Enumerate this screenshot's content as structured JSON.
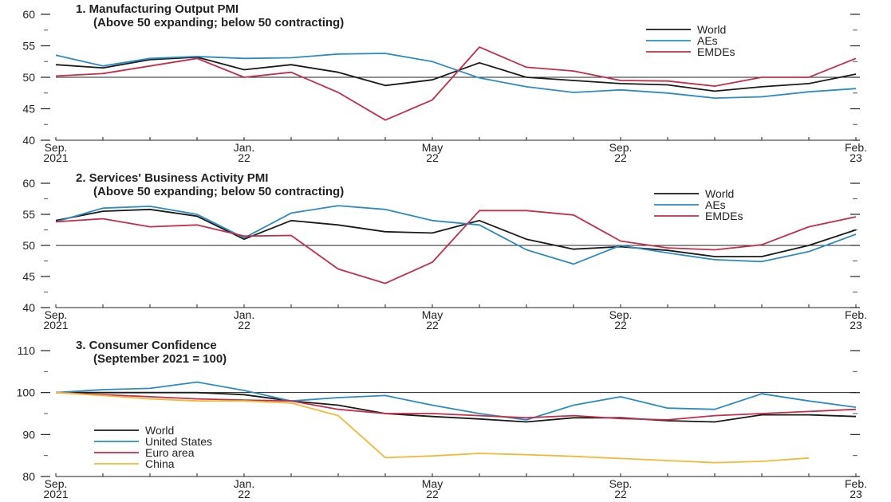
{
  "chart_data": [
    {
      "type": "line",
      "title": "1. Manufacturing Output PMI",
      "subtitle": "(Above 50 expanding; below 50 contracting)",
      "x": [
        "Sep. 2021",
        "Oct. 2021",
        "Nov. 2021",
        "Dec. 2021",
        "Jan. 22",
        "Feb. 22",
        "Mar. 22",
        "Apr. 22",
        "May 22",
        "Jun. 22",
        "Jul. 22",
        "Aug. 22",
        "Sep. 22",
        "Oct. 22",
        "Nov. 22",
        "Dec. 22",
        "Jan. 23",
        "Feb. 23"
      ],
      "x_tick_labels": [
        {
          "index": 0,
          "line1": "Sep.",
          "line2": "2021"
        },
        {
          "index": 4,
          "line1": "Jan.",
          "line2": "22"
        },
        {
          "index": 8,
          "line1": "May",
          "line2": "22"
        },
        {
          "index": 12,
          "line1": "Sep.",
          "line2": "22"
        },
        {
          "index": 17,
          "line1": "Feb.",
          "line2": "23"
        }
      ],
      "ylim": [
        40,
        60
      ],
      "y_ticks": [
        40,
        45,
        50,
        55,
        60
      ],
      "reference_line": 50,
      "legend_position": "top-right",
      "series": [
        {
          "name": "World",
          "color": "#1a1a1a",
          "values": [
            52.0,
            51.5,
            52.8,
            53.2,
            51.2,
            52.0,
            50.8,
            48.7,
            49.6,
            52.3,
            50.0,
            49.5,
            49.0,
            48.8,
            47.8,
            48.5,
            49.0,
            50.5
          ]
        },
        {
          "name": "AEs",
          "color": "#2e8bc0",
          "values": [
            53.5,
            51.8,
            53.0,
            53.3,
            53.0,
            53.1,
            53.7,
            53.8,
            52.5,
            49.9,
            48.5,
            47.6,
            48.0,
            47.5,
            46.7,
            46.9,
            47.7,
            48.2
          ]
        },
        {
          "name": "EMDEs",
          "color": "#c0304a",
          "values": [
            50.2,
            50.6,
            51.8,
            53.0,
            50.0,
            50.8,
            47.6,
            43.2,
            46.4,
            54.8,
            51.6,
            51.0,
            49.5,
            49.4,
            48.6,
            50.0,
            50.0,
            53.0
          ]
        }
      ]
    },
    {
      "type": "line",
      "title": "2. Services' Business Activity PMI",
      "subtitle": "(Above 50 expanding; below 50 contracting)",
      "x": [
        "Sep. 2021",
        "Oct. 2021",
        "Nov. 2021",
        "Dec. 2021",
        "Jan. 22",
        "Feb. 22",
        "Mar. 22",
        "Apr. 22",
        "May 22",
        "Jun. 22",
        "Jul. 22",
        "Aug. 22",
        "Sep. 22",
        "Oct. 22",
        "Nov. 22",
        "Dec. 22",
        "Jan. 23",
        "Feb. 23"
      ],
      "x_tick_labels": [
        {
          "index": 0,
          "line1": "Sep.",
          "line2": "2021"
        },
        {
          "index": 4,
          "line1": "Jan.",
          "line2": "22"
        },
        {
          "index": 8,
          "line1": "May",
          "line2": "22"
        },
        {
          "index": 12,
          "line1": "Sep.",
          "line2": "22"
        },
        {
          "index": 17,
          "line1": "Feb.",
          "line2": "23"
        }
      ],
      "ylim": [
        40,
        60
      ],
      "y_ticks": [
        40,
        45,
        50,
        55,
        60
      ],
      "reference_line": 50,
      "legend_position": "top-right",
      "series": [
        {
          "name": "World",
          "color": "#1a1a1a",
          "values": [
            54.0,
            55.5,
            55.8,
            54.7,
            51.0,
            54.0,
            53.3,
            52.2,
            52.0,
            54.0,
            51.0,
            49.4,
            49.8,
            49.2,
            48.2,
            48.2,
            50.0,
            52.5
          ]
        },
        {
          "name": "AEs",
          "color": "#2e8bc0",
          "values": [
            53.8,
            56.0,
            56.3,
            55.0,
            51.2,
            55.2,
            56.4,
            55.8,
            54.0,
            53.3,
            49.3,
            47.0,
            50.0,
            48.8,
            47.7,
            47.4,
            49.0,
            51.8
          ]
        },
        {
          "name": "EMDEs",
          "color": "#c0304a",
          "values": [
            53.8,
            54.3,
            53.0,
            53.3,
            51.5,
            51.6,
            46.2,
            43.9,
            47.3,
            55.6,
            55.6,
            54.9,
            50.7,
            49.6,
            49.3,
            50.1,
            53.0,
            54.6
          ]
        }
      ]
    },
    {
      "type": "line",
      "title": "3. Consumer Confidence",
      "subtitle": "(September 2021 = 100)",
      "x": [
        "Sep. 2021",
        "Oct. 2021",
        "Nov. 2021",
        "Dec. 2021",
        "Jan. 22",
        "Feb. 22",
        "Mar. 22",
        "Apr. 22",
        "May 22",
        "Jun. 22",
        "Jul. 22",
        "Aug. 22",
        "Sep. 22",
        "Oct. 22",
        "Nov. 22",
        "Dec. 22",
        "Jan. 23",
        "Feb. 23"
      ],
      "x_tick_labels": [
        {
          "index": 0,
          "line1": "Sep.",
          "line2": "2021"
        },
        {
          "index": 4,
          "line1": "Jan.",
          "line2": "22"
        },
        {
          "index": 8,
          "line1": "May",
          "line2": "22"
        },
        {
          "index": 12,
          "line1": "Sep.",
          "line2": "22"
        },
        {
          "index": 17,
          "line1": "Feb.",
          "line2": "23"
        }
      ],
      "ylim": [
        80,
        110
      ],
      "y_ticks": [
        80,
        90,
        100,
        110
      ],
      "reference_line": 100,
      "legend_position": "bottom-left",
      "series": [
        {
          "name": "World",
          "color": "#1a1a1a",
          "values": [
            100,
            100,
            100,
            100,
            99.5,
            98,
            97,
            95,
            94.3,
            93.7,
            93,
            94,
            94,
            93.3,
            93,
            94.7,
            94.7,
            94.3
          ]
        },
        {
          "name": "United States",
          "color": "#2e8bc0",
          "values": [
            100,
            100.7,
            101,
            102.5,
            100.5,
            98,
            98.8,
            99.3,
            97,
            95,
            93.5,
            97,
            99,
            96.3,
            96,
            99.7,
            98,
            96.5
          ]
        },
        {
          "name": "Euro area",
          "color": "#c0304a",
          "values": [
            100,
            99.5,
            99,
            98.5,
            98.2,
            98,
            96,
            95,
            95,
            94.5,
            94,
            94.5,
            93.8,
            93.5,
            94.5,
            95,
            95.5,
            96
          ]
        },
        {
          "name": "China",
          "color": "#f0b93a",
          "values": [
            100,
            99.3,
            98.5,
            98,
            98,
            97.5,
            94.5,
            84.5,
            84.9,
            85.5,
            85.2,
            84.8,
            84.3,
            83.8,
            83.3,
            83.6,
            84.4,
            null
          ]
        }
      ]
    }
  ]
}
